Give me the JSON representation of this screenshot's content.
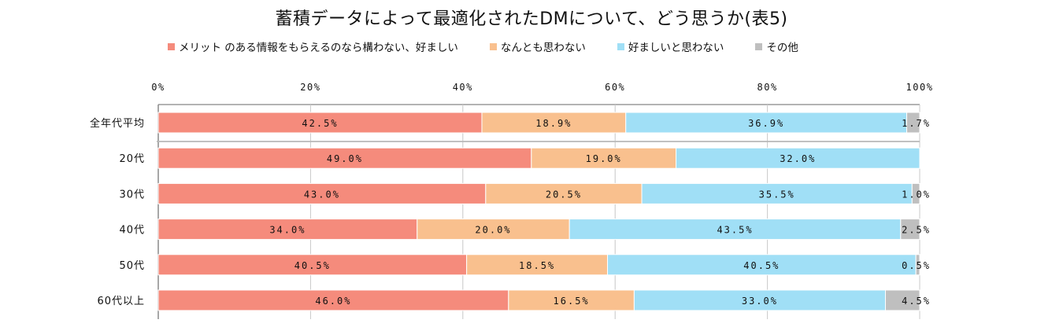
{
  "chart_data": {
    "type": "bar",
    "orientation": "horizontal",
    "stacked": "percent",
    "title": "蓄積データによって最適化されたDMについて、どう思うか(表5)",
    "xlabel": "",
    "ylabel": "",
    "xlim": [
      0,
      100
    ],
    "x_ticks": [
      "0%",
      "20%",
      "40%",
      "60%",
      "80%",
      "100%"
    ],
    "x_tick_values": [
      0,
      20,
      40,
      60,
      80,
      100
    ],
    "x_axis_position": "top",
    "grid": true,
    "legend_position": "top",
    "categories": [
      "全年代平均",
      "20代",
      "30代",
      "40代",
      "50代",
      "60代以上"
    ],
    "series": [
      {
        "name": "メリット のある情報をもらえるのなら構わない、好ましい",
        "color": "#f58b7c",
        "values": [
          42.5,
          49.0,
          43.0,
          34.0,
          40.5,
          46.0
        ],
        "labels": [
          "42.5%",
          "49.0%",
          "43.0%",
          "34.0%",
          "40.5%",
          "46.0%"
        ]
      },
      {
        "name": "なんとも思わない",
        "color": "#f9c08e",
        "values": [
          18.9,
          19.0,
          20.5,
          20.0,
          18.5,
          16.5
        ],
        "labels": [
          "18.9%",
          "19.0%",
          "20.5%",
          "20.0%",
          "18.5%",
          "16.5%"
        ]
      },
      {
        "name": "好ましいと思わない",
        "color": "#a0dff6",
        "values": [
          36.9,
          32.0,
          35.5,
          43.5,
          40.5,
          33.0
        ],
        "labels": [
          "36.9%",
          "32.0%",
          "35.5%",
          "43.5%",
          "40.5%",
          "33.0%"
        ]
      },
      {
        "name": "その他",
        "color": "#bfbfbf",
        "values": [
          1.7,
          0.0,
          1.0,
          2.5,
          0.5,
          4.5
        ],
        "labels": [
          "1.7%",
          "",
          "1.0%",
          "2.5%",
          "0.5%",
          "4.5%"
        ]
      }
    ],
    "separator_after_category": "全年代平均"
  }
}
